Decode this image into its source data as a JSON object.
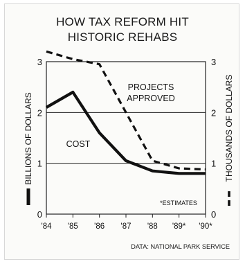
{
  "chart_data": {
    "type": "line",
    "title_lines": [
      "HOW TAX REFORM HIT",
      "HISTORIC REHABS"
    ],
    "categories": [
      "'84",
      "'85",
      "'86",
      "'87",
      "'88",
      "'89*",
      "'90*"
    ],
    "left_axis": {
      "label": "BILLIONS OF DOLLARS",
      "ticks": [
        "0",
        "1",
        "2",
        "3"
      ],
      "ylim": [
        0,
        3
      ]
    },
    "right_axis": {
      "label": "THOUSANDS OF DOLLARS",
      "ticks": [
        "0",
        "1",
        "2",
        "3"
      ],
      "ylim": [
        0,
        3
      ]
    },
    "grid": "horizontal",
    "series": [
      {
        "name": "COST",
        "axis": "left",
        "style": "solid",
        "values": [
          2.1,
          2.4,
          1.6,
          1.05,
          0.85,
          0.8,
          0.8
        ]
      },
      {
        "name": "PROJECTS APPROVED",
        "axis": "right",
        "style": "dashed",
        "values": [
          3.2,
          3.05,
          2.95,
          2.0,
          1.05,
          0.9,
          0.88
        ]
      }
    ],
    "labels": {
      "projects_line1": "PROJECTS",
      "projects_line2": "APPROVED",
      "cost": "COST",
      "estimates": "*ESTIMATES"
    },
    "source": "DATA: NATIONAL PARK SERVICE",
    "colors": {
      "line": "#111111",
      "grid": "#222222",
      "background": "#fbfbf9"
    }
  }
}
